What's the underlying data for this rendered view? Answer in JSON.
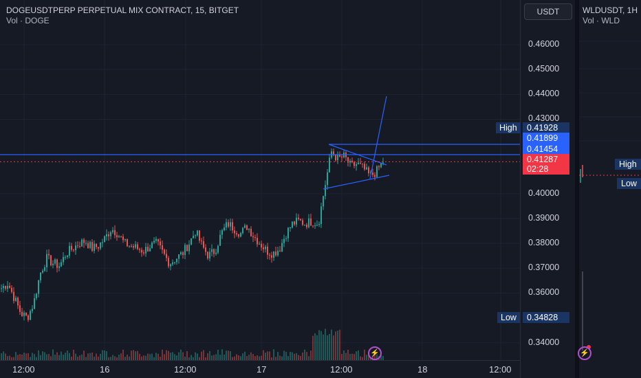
{
  "main_chart": {
    "title": "DOGEUSDTPERP PERPETUAL MIX CONTRACT, 15, BITGET",
    "volume_label": "Vol · DOGE",
    "currency_button": "USDT",
    "price_axis": [
      "0.46000",
      "0.45000",
      "0.44000",
      "0.43000",
      "0.40000",
      "0.39000",
      "0.38000",
      "0.37000",
      "0.36000",
      "0.34000"
    ],
    "time_axis": [
      "12:00",
      "16",
      "12:00",
      "17",
      "12:00",
      "18",
      "12:00"
    ],
    "high_label": "High",
    "high_value": "0.41928",
    "price_tag_1": "0.41899",
    "price_tag_2": "0.41454",
    "current_price": "0.41287",
    "countdown": "02:28",
    "low_label": "Low",
    "low_value": "0.34828"
  },
  "right_chart": {
    "title": "WLDUSDT, 1H",
    "volume_label": "Vol · WLD",
    "high_label": "High",
    "low_label": "Low"
  },
  "colors": {
    "background": "#161A25",
    "up": "#26A69A",
    "down": "#EF5350",
    "drawing": "#2962FF",
    "tag_blue": "#2962FF",
    "tag_red": "#F23645",
    "tag_navy": "#1A3563"
  },
  "chart_data": {
    "type": "candlestick",
    "symbol": "DOGEUSDTPERP",
    "interval": "15",
    "ylim": [
      0.333,
      0.478
    ],
    "x_ticks": [
      "12:00",
      "16",
      "12:00",
      "17",
      "12:00",
      "18",
      "12:00"
    ],
    "close_path": [
      0.362,
      0.364,
      0.358,
      0.352,
      0.35,
      0.356,
      0.368,
      0.374,
      0.372,
      0.371,
      0.376,
      0.378,
      0.38,
      0.381,
      0.378,
      0.379,
      0.382,
      0.386,
      0.384,
      0.38,
      0.379,
      0.378,
      0.377,
      0.379,
      0.38,
      0.376,
      0.372,
      0.374,
      0.376,
      0.38,
      0.385,
      0.379,
      0.375,
      0.377,
      0.384,
      0.388,
      0.386,
      0.384,
      0.387,
      0.383,
      0.38,
      0.377,
      0.376,
      0.378,
      0.384,
      0.388,
      0.389,
      0.388,
      0.389,
      0.388,
      0.403,
      0.417,
      0.414,
      0.415,
      0.411,
      0.412,
      0.41,
      0.407,
      0.409,
      0.413
    ],
    "high": 0.41928,
    "low": 0.34828,
    "last": 0.41287
  }
}
